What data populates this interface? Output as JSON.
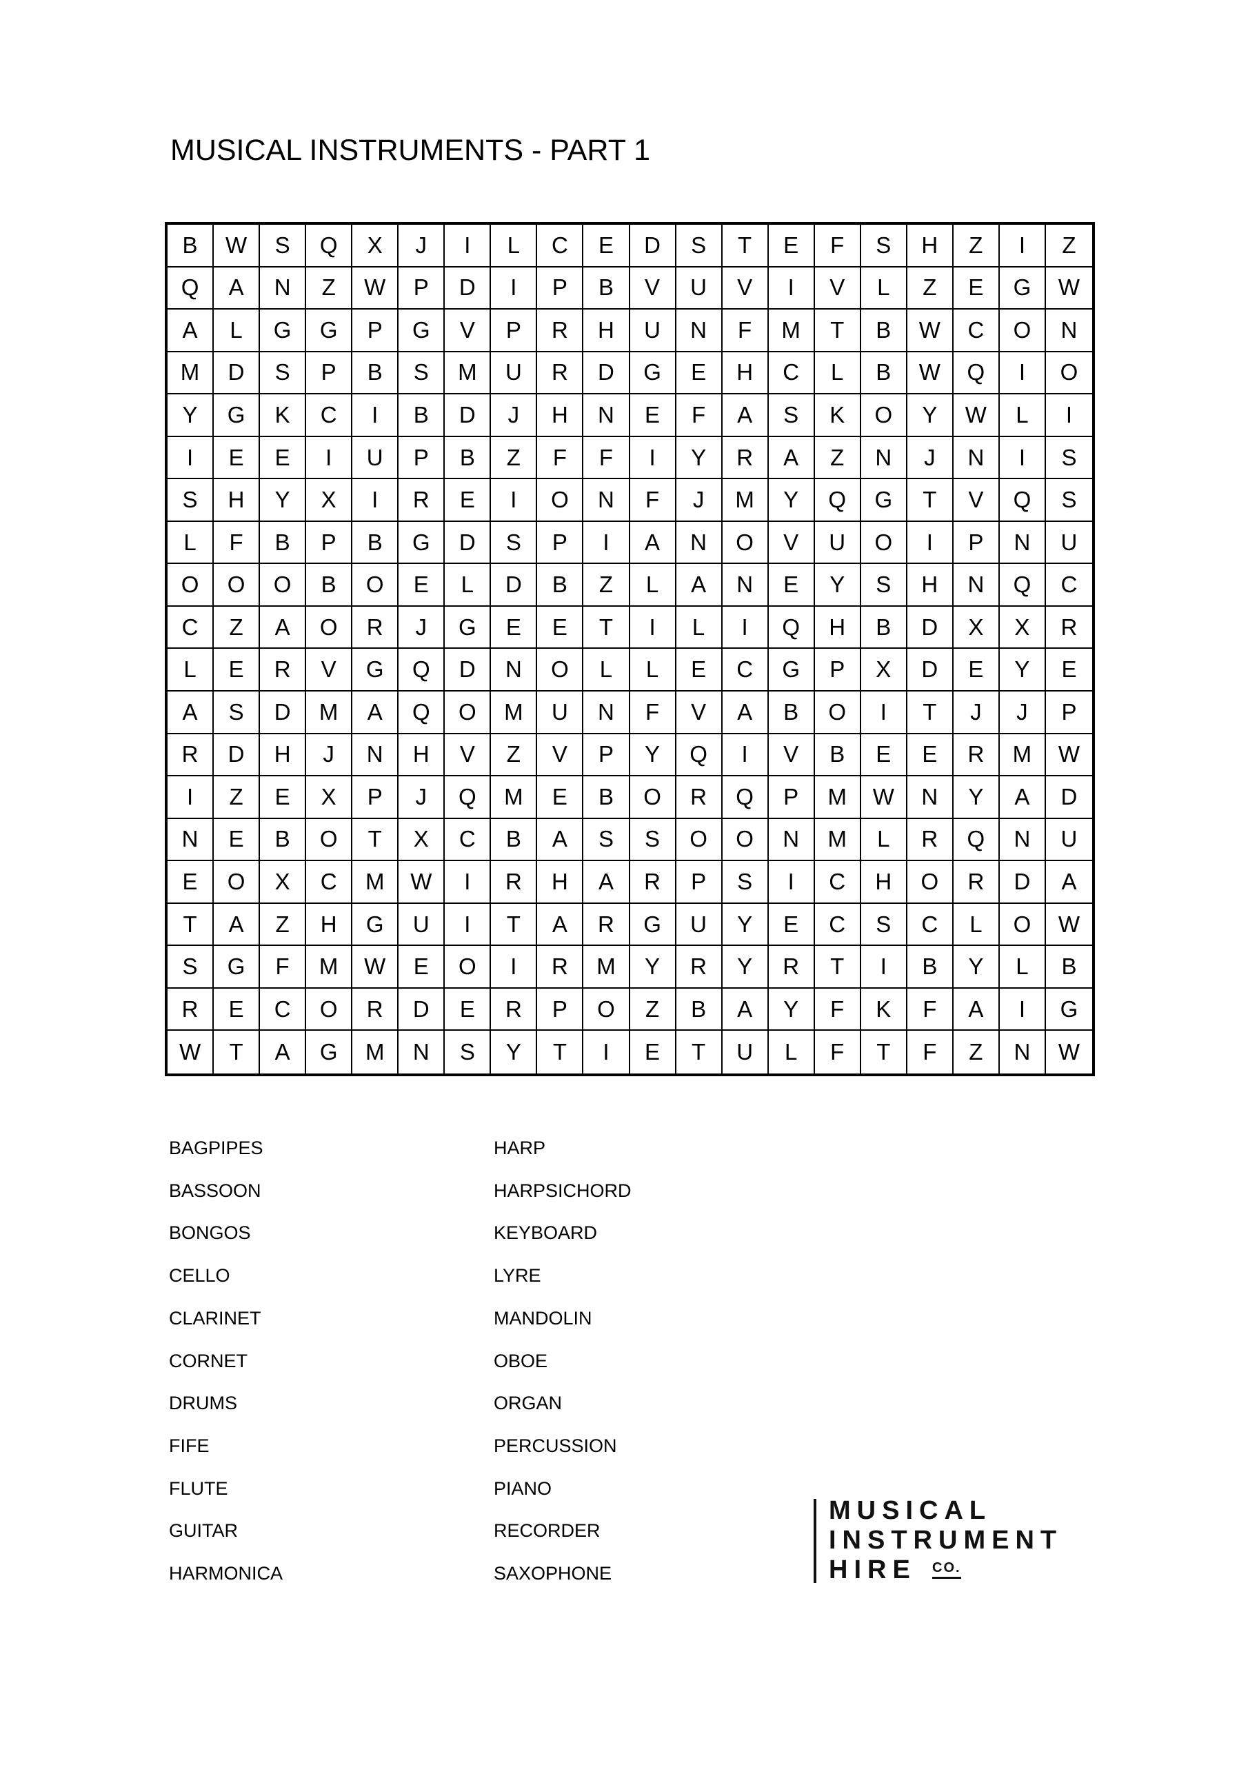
{
  "title": "MUSICAL INSTRUMENTS - PART 1",
  "grid": [
    "BWSQXJILCEDSTEFSHZIZ",
    "QANZWPDIPBVUVIVLZEGW",
    "ALGGPGVPRHUNFMTBWCON",
    "MDSPBSMURDGEHCLBWQIO",
    "YGKCIBDJHNEFASKOYWLI",
    "IEEIUPBZFFIYRAZNJNIS",
    "SHYXIREIONFJMYQGTVQS",
    "LFBPBGDSPIANOVUOIPNU",
    "OOOBOELDBZLANEYSHNQC",
    "CZAORJGEETILIQHBDXXR",
    "LERVGQDNOLLECGPXDEYE",
    "ASDMAQOMUNFVABOITJJP",
    "RDHJNHVZVPYQIVBEERMW",
    "IZEXPJQMEBORQPMWNYAD",
    "NEBOTXCBASSOONMLRQNU",
    "EOXCMWIRHARPSICHORDA",
    "TAZHGUITARGUYECSCLOW",
    "SGFMWEOIRMYRYRTIBYLB",
    "RECORDERPOZBAYFKFAIG",
    "WTAGMNSYTIETULFTFZNW"
  ],
  "words": {
    "column1": [
      "BAGPIPES",
      "BASSOON",
      "BONGOS",
      "CELLO",
      "CLARINET",
      "CORNET",
      "DRUMS",
      "FIFE",
      "FLUTE",
      "GUITAR",
      "HARMONICA"
    ],
    "column2": [
      "HARP",
      "HARPSICHORD",
      "KEYBOARD",
      "LYRE",
      "MANDOLIN",
      "OBOE",
      "ORGAN",
      "PERCUSSION",
      "PIANO",
      "RECORDER",
      "SAXOPHONE"
    ]
  },
  "logo": {
    "line1": "MUSICAL",
    "line2": "INSTRUMENT",
    "line3": "HIRE",
    "suffix": "CO."
  }
}
